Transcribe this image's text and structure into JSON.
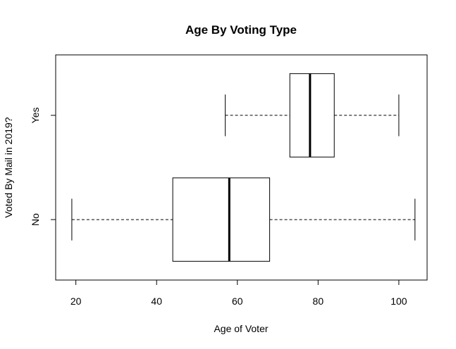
{
  "chart_data": {
    "type": "boxplot",
    "orientation": "horizontal",
    "title": "Age By Voting Type",
    "xlabel": "Age of Voter",
    "ylabel": "Voted By Mail in 2019?",
    "xlim": [
      15,
      107
    ],
    "x_ticks": [
      20,
      40,
      60,
      80,
      100
    ],
    "categories": [
      "No",
      "Yes"
    ],
    "boxes": [
      {
        "category": "No",
        "whisker_low": 19,
        "q1": 44,
        "median": 58,
        "q3": 68,
        "whisker_high": 104
      },
      {
        "category": "Yes",
        "whisker_low": 57,
        "q1": 73,
        "median": 78,
        "q3": 84,
        "whisker_high": 100
      }
    ],
    "grid": false,
    "legend": "none",
    "colors": {
      "stroke": "#000000",
      "box_fill": "#ffffff",
      "background": "#ffffff"
    }
  }
}
